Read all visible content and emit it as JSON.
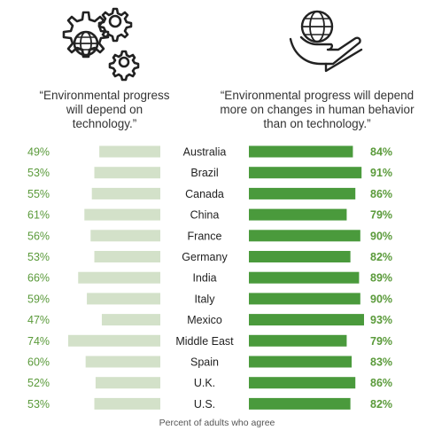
{
  "left_heading": "“Environmental progress will depend on technology.”",
  "right_heading": "“Environmental progress will depend more on changes in human behavior than on technology.”",
  "footer": "Percent of adults who agree",
  "colors": {
    "left_bar": "#d3e1c9",
    "right_bar": "#4a9a3c",
    "pct_text": "#5a9a3a",
    "label_text": "#222222"
  },
  "icons": {
    "left": "gears-with-globe-icon",
    "right": "hand-holding-globe-icon"
  },
  "chart_data": {
    "type": "bar",
    "categories": [
      "Australia",
      "Brazil",
      "Canada",
      "China",
      "France",
      "Germany",
      "India",
      "Italy",
      "Mexico",
      "Middle East",
      "Spain",
      "U.K.",
      "U.S."
    ],
    "series": [
      {
        "values": [
          49,
          53,
          55,
          61,
          56,
          53,
          66,
          59,
          47,
          74,
          60,
          52,
          53
        ]
      },
      {
        "values": [
          84,
          91,
          86,
          79,
          90,
          82,
          89,
          90,
          93,
          79,
          83,
          86,
          82
        ]
      }
    ],
    "value_labels": {
      "left": [
        "49%",
        "53%",
        "55%",
        "61%",
        "56%",
        "53%",
        "66%",
        "59%",
        "47%",
        "74%",
        "60%",
        "52%",
        "53%"
      ],
      "right": [
        "84%",
        "91%",
        "86%",
        "79%",
        "90%",
        "82%",
        "89%",
        "90%",
        "93%",
        "79%",
        "83%",
        "86%",
        "82%"
      ]
    },
    "xlabel": "Percent of adults who agree"
  }
}
